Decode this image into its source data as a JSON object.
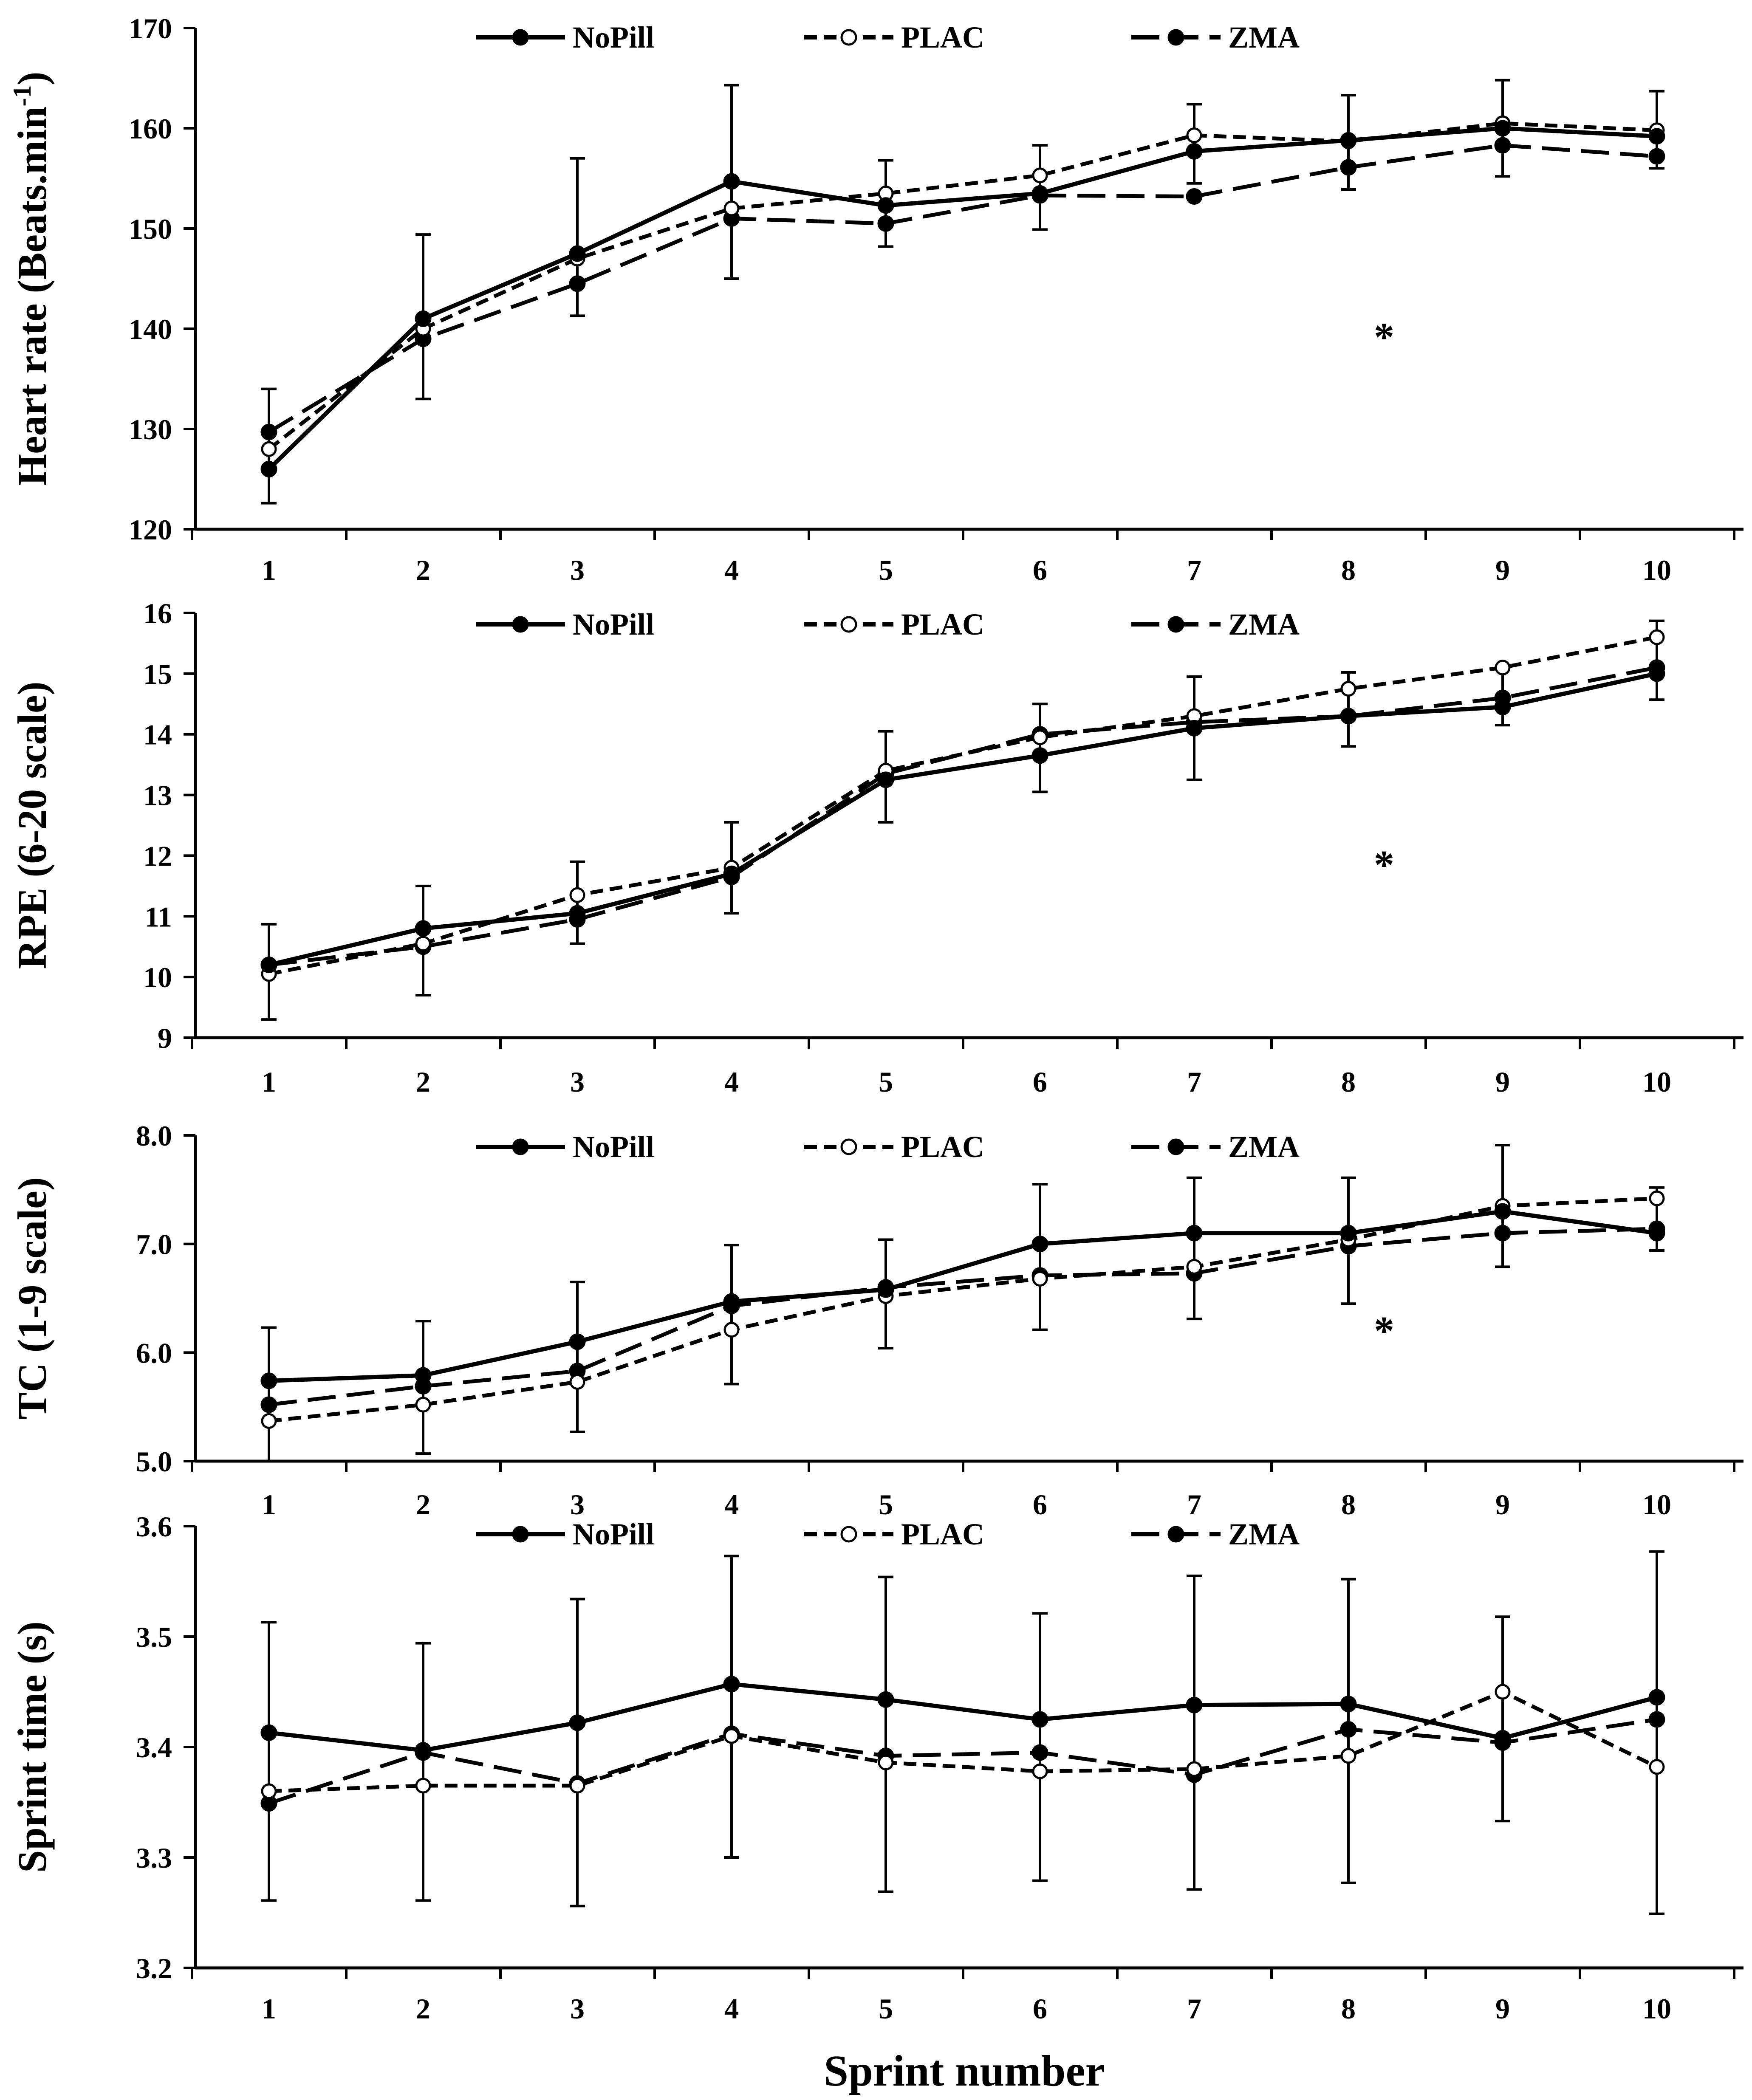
{
  "xlabel": "Sprint number",
  "legend": {
    "items": [
      {
        "name": "NoPill",
        "style": "solid",
        "marker": "filled"
      },
      {
        "name": "PLAC",
        "style": "short-dash",
        "marker": "open"
      },
      {
        "name": "ZMA",
        "style": "long-dash",
        "marker": "filled"
      }
    ]
  },
  "chart_data": [
    {
      "type": "line",
      "ylabel": "Heart rate (Beats.min-1)",
      "ylabel_main": "Heart rate (Beats.min",
      "ylabel_sup": "-1",
      "ylabel_close": ")",
      "ylim": [
        120,
        170
      ],
      "yticks": [
        "120",
        "130",
        "140",
        "150",
        "160",
        "170"
      ],
      "x": [
        1,
        2,
        3,
        4,
        5,
        6,
        7,
        8,
        9,
        10
      ],
      "xtick_labels": [
        "1",
        "2",
        "3",
        "4",
        "5",
        "6",
        "7",
        "8",
        "9",
        "10"
      ],
      "series": [
        {
          "name": "NoPill",
          "values": [
            126,
            141,
            147.5,
            154.7,
            152.3,
            153.5,
            157.7,
            158.8,
            160,
            159.2
          ]
        },
        {
          "name": "PLAC",
          "values": [
            128,
            140,
            147,
            152,
            153.5,
            155.3,
            159.3,
            158.7,
            160.5,
            159.8
          ]
        },
        {
          "name": "ZMA",
          "values": [
            129.7,
            139,
            144.5,
            151,
            150.5,
            153.3,
            153.2,
            156.1,
            158.3,
            157.2
          ]
        }
      ],
      "error_bars": [
        {
          "x": 1,
          "low": 122.6,
          "high": 134
        },
        {
          "x": 2,
          "low": 133,
          "high": 149.4
        },
        {
          "x": 3,
          "low": 141.3,
          "high": 157
        },
        {
          "x": 4,
          "low": 145,
          "high": 164.3
        },
        {
          "x": 5,
          "low": 148.2,
          "high": 156.8
        },
        {
          "x": 6,
          "low": 149.9,
          "high": 158.3
        },
        {
          "x": 7,
          "low": 154.5,
          "high": 162.4
        },
        {
          "x": 8,
          "low": 153.9,
          "high": 163.3
        },
        {
          "x": 9,
          "low": 155.2,
          "high": 164.8
        },
        {
          "x": 10,
          "low": 156,
          "high": 163.7
        }
      ],
      "annotation": {
        "text": "*",
        "x": 8.23,
        "y": 139.5
      },
      "ytick_format": 0
    },
    {
      "type": "line",
      "ylabel": "RPE (6-20 scale)",
      "ylim": [
        9,
        16
      ],
      "yticks": [
        "9",
        "10",
        "11",
        "12",
        "13",
        "14",
        "15",
        "16"
      ],
      "x": [
        1,
        2,
        3,
        4,
        5,
        6,
        7,
        8,
        9,
        10
      ],
      "xtick_labels": [
        "1",
        "2",
        "3",
        "4",
        "5",
        "6",
        "7",
        "8",
        "9",
        "10"
      ],
      "series": [
        {
          "name": "NoPill",
          "values": [
            10.2,
            10.8,
            11.05,
            11.7,
            13.25,
            13.65,
            14.1,
            14.3,
            14.45,
            15
          ]
        },
        {
          "name": "PLAC",
          "values": [
            10.05,
            10.55,
            11.35,
            11.8,
            13.4,
            13.95,
            14.3,
            14.75,
            15.1,
            15.6
          ]
        },
        {
          "name": "ZMA",
          "values": [
            10.2,
            10.5,
            10.95,
            11.65,
            13.35,
            14,
            14.2,
            14.3,
            14.6,
            15.1
          ]
        }
      ],
      "error_bars": [
        {
          "x": 1,
          "low": 9.3,
          "high": 10.87
        },
        {
          "x": 2,
          "low": 9.7,
          "high": 11.5
        },
        {
          "x": 3,
          "low": 10.55,
          "high": 11.9
        },
        {
          "x": 4,
          "low": 11.05,
          "high": 12.55
        },
        {
          "x": 5,
          "low": 12.55,
          "high": 14.05
        },
        {
          "x": 6,
          "low": 13.05,
          "high": 14.5
        },
        {
          "x": 7,
          "low": 13.25,
          "high": 14.95
        },
        {
          "x": 8,
          "low": 13.8,
          "high": 15.02
        },
        {
          "x": 9,
          "low": 14.15,
          "high": 15.1
        },
        {
          "x": 10,
          "low": 14.57,
          "high": 15.87
        }
      ],
      "annotation": {
        "text": "*",
        "x": 8.23,
        "y": 11.9
      },
      "ytick_format": 0
    },
    {
      "type": "line",
      "ylabel": "TC (1-9 scale)",
      "ylim": [
        5,
        8
      ],
      "yticks": [
        "5.0",
        "6.0",
        "7.0",
        "8.0"
      ],
      "x": [
        1,
        2,
        3,
        4,
        5,
        6,
        7,
        8,
        9,
        10
      ],
      "xtick_labels": [
        "1",
        "2",
        "3",
        "4",
        "5",
        "6",
        "7",
        "8",
        "9",
        "10"
      ],
      "series": [
        {
          "name": "NoPill",
          "values": [
            5.74,
            5.79,
            6.1,
            6.47,
            6.58,
            7,
            7.1,
            7.1,
            7.3,
            7.1
          ]
        },
        {
          "name": "PLAC",
          "values": [
            5.37,
            5.52,
            5.73,
            6.21,
            6.52,
            6.68,
            6.79,
            7.04,
            7.35,
            7.42
          ]
        },
        {
          "name": "ZMA",
          "values": [
            5.52,
            5.69,
            5.83,
            6.43,
            6.6,
            6.71,
            6.73,
            6.98,
            7.1,
            7.14
          ]
        }
      ],
      "error_bars": [
        {
          "x": 1,
          "low": 5.0,
          "high": 6.23
        },
        {
          "x": 2,
          "low": 5.07,
          "high": 6.29
        },
        {
          "x": 3,
          "low": 5.27,
          "high": 6.65
        },
        {
          "x": 4,
          "low": 5.71,
          "high": 6.99
        },
        {
          "x": 5,
          "low": 6.04,
          "high": 7.04
        },
        {
          "x": 6,
          "low": 6.21,
          "high": 7.55
        },
        {
          "x": 7,
          "low": 6.31,
          "high": 7.61
        },
        {
          "x": 8,
          "low": 6.45,
          "high": 7.61
        },
        {
          "x": 9,
          "low": 6.79,
          "high": 7.91
        },
        {
          "x": 10,
          "low": 6.94,
          "high": 7.52
        }
      ],
      "annotation": {
        "text": "*",
        "x": 8.23,
        "y": 6.23
      },
      "ytick_format": 1
    },
    {
      "type": "line",
      "ylabel": "Sprint time (s)",
      "ylim": [
        3.2,
        3.6
      ],
      "yticks": [
        "3.2",
        "3.3",
        "3.4",
        "3.5",
        "3.6"
      ],
      "x": [
        1,
        2,
        3,
        4,
        5,
        6,
        7,
        8,
        9,
        10
      ],
      "xtick_labels": [
        "1",
        "2",
        "3",
        "4",
        "5",
        "6",
        "7",
        "8",
        "9",
        "10"
      ],
      "series": [
        {
          "name": "NoPill",
          "values": [
            3.413,
            3.397,
            3.422,
            3.457,
            3.443,
            3.425,
            3.438,
            3.439,
            3.408,
            3.445
          ]
        },
        {
          "name": "PLAC",
          "values": [
            3.36,
            3.365,
            3.365,
            3.41,
            3.386,
            3.378,
            3.38,
            3.392,
            3.45,
            3.382
          ]
        },
        {
          "name": "ZMA",
          "values": [
            3.349,
            3.395,
            3.367,
            3.412,
            3.392,
            3.395,
            3.375,
            3.416,
            3.404,
            3.425
          ]
        }
      ],
      "error_bars": [
        {
          "x": 1,
          "low": 3.261,
          "high": 3.513
        },
        {
          "x": 2,
          "low": 3.261,
          "high": 3.494
        },
        {
          "x": 3,
          "low": 3.256,
          "high": 3.534
        },
        {
          "x": 4,
          "low": 3.3,
          "high": 3.573
        },
        {
          "x": 5,
          "low": 3.269,
          "high": 3.554
        },
        {
          "x": 6,
          "low": 3.279,
          "high": 3.521
        },
        {
          "x": 7,
          "low": 3.271,
          "high": 3.555
        },
        {
          "x": 8,
          "low": 3.277,
          "high": 3.552
        },
        {
          "x": 9,
          "low": 3.333,
          "high": 3.518
        },
        {
          "x": 10,
          "low": 3.249,
          "high": 3.577
        }
      ],
      "ytick_format": 1
    }
  ]
}
